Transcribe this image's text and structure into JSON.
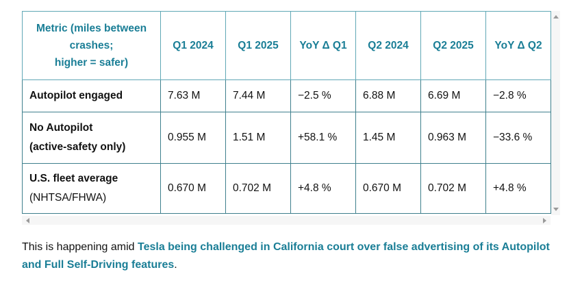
{
  "table": {
    "headers": [
      "Metric (miles between crashes; higher = safer)",
      "Q1 2024",
      "Q1 2025",
      "YoY Δ Q1",
      "Q2 2024",
      "Q2 2025",
      "YoY Δ Q2"
    ],
    "header_first_lines": [
      "Metric (miles between",
      "crashes;",
      "higher = safer)"
    ],
    "rows": [
      {
        "label": "Autopilot engaged",
        "sub": "",
        "cells": [
          "7.63 M",
          "7.44 M",
          "−2.5 %",
          "6.88 M",
          "6.69 M",
          "−2.8 %"
        ]
      },
      {
        "label": "No Autopilot",
        "sub": "(active-safety only)",
        "cells": [
          "0.955 M",
          "1.51 M",
          "+58.1 %",
          "1.45 M",
          "0.963 M",
          "−33.6 %"
        ]
      },
      {
        "label": "U.S. fleet average",
        "sub": "(NHTSA/FHWA)",
        "cells": [
          "0.670 M",
          "0.702 M",
          "+4.8 %",
          "0.670 M",
          "0.702 M",
          "+4.8 %"
        ]
      }
    ]
  },
  "paragraph": {
    "prefix": "This is happening amid ",
    "link_text": "Tesla being challenged in California court over false advertising of its Autopilot and Full Self-Driving features",
    "suffix": "."
  },
  "colors": {
    "accent": "#1a7e96",
    "border": "#3d7f8c"
  }
}
